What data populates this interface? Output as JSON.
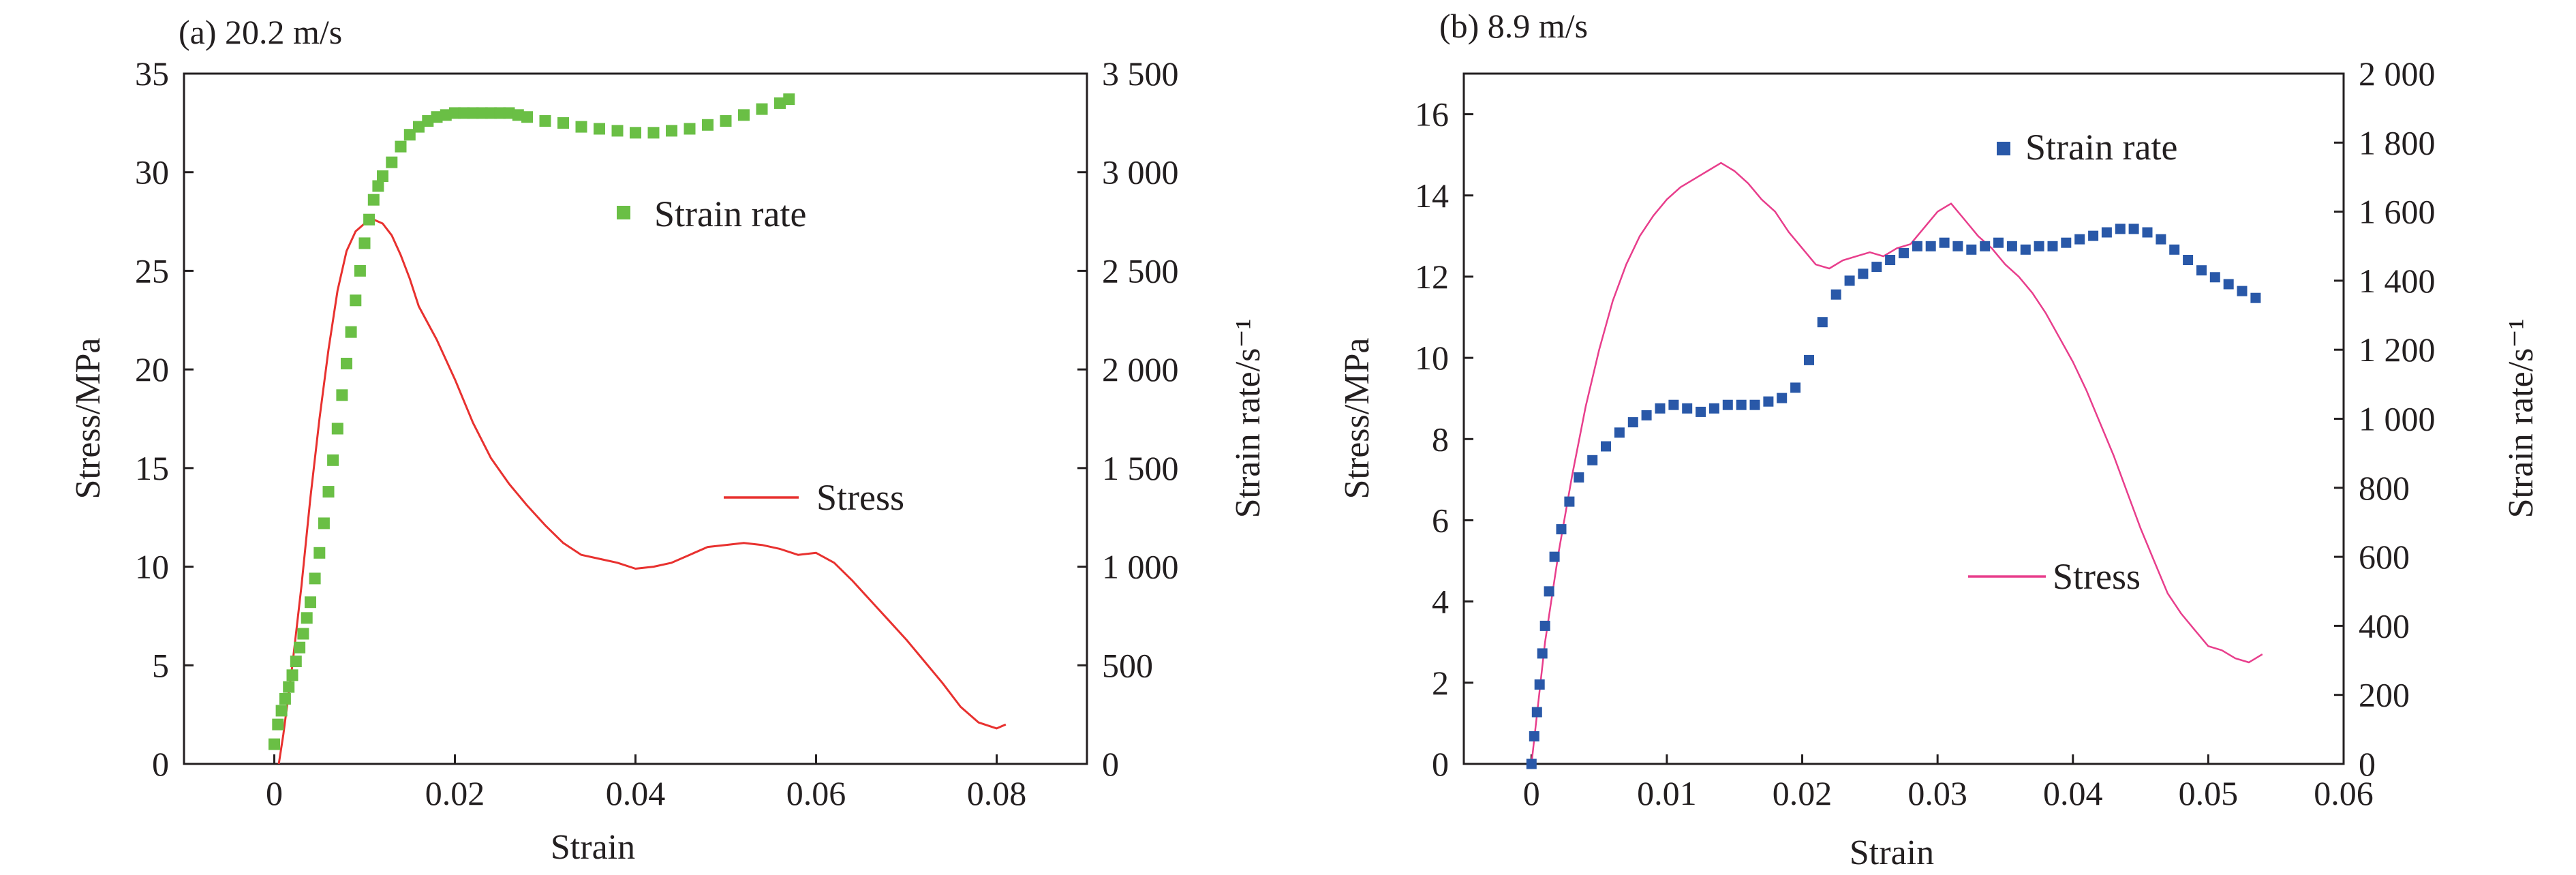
{
  "chart_data": [
    {
      "type": "line",
      "title": "(a) 20.2 m/s",
      "xlabel": "Strain",
      "ylabel": "Stress/MPa",
      "y2label": "Strain rate/s⁻¹",
      "xlim": [
        -0.01,
        0.09
      ],
      "ylim": [
        0,
        35
      ],
      "y2lim": [
        0,
        3500
      ],
      "xticks": [
        0,
        0.02,
        0.04,
        0.06,
        0.08
      ],
      "xtick_labels": [
        "0",
        "0.02",
        "0.04",
        "0.06",
        "0.08"
      ],
      "yticks": [
        0,
        5,
        10,
        15,
        20,
        25,
        30,
        35
      ],
      "ytick_labels": [
        "0",
        "5",
        "10",
        "15",
        "20",
        "25",
        "30",
        "35"
      ],
      "y2ticks": [
        0,
        500,
        1000,
        1500,
        2000,
        2500,
        3000,
        3500
      ],
      "y2tick_labels": [
        "0",
        "500",
        "1 000",
        "1 500",
        "2 000",
        "2 500",
        "3 000",
        "3 500"
      ],
      "grid": false,
      "series": [
        {
          "name": "Stress",
          "axis": "left",
          "style": "line",
          "color": "#e8312f",
          "x": [
            0.0005,
            0.001,
            0.002,
            0.003,
            0.004,
            0.005,
            0.006,
            0.007,
            0.008,
            0.009,
            0.01,
            0.011,
            0.012,
            0.013,
            0.014,
            0.015,
            0.016,
            0.018,
            0.02,
            0.022,
            0.024,
            0.026,
            0.028,
            0.03,
            0.032,
            0.034,
            0.036,
            0.038,
            0.04,
            0.042,
            0.044,
            0.046,
            0.048,
            0.05,
            0.052,
            0.054,
            0.056,
            0.058,
            0.06,
            0.062,
            0.064,
            0.066,
            0.068,
            0.07,
            0.072,
            0.074,
            0.076,
            0.078,
            0.08,
            0.081
          ],
          "y": [
            0,
            1.5,
            5,
            9,
            13.5,
            17.5,
            21,
            24,
            26,
            27,
            27.4,
            27.6,
            27.4,
            26.8,
            25.8,
            24.6,
            23.2,
            21.5,
            19.5,
            17.3,
            15.5,
            14.2,
            13.1,
            12.1,
            11.2,
            10.6,
            10.4,
            10.2,
            9.9,
            10.0,
            10.2,
            10.6,
            11.0,
            11.1,
            11.2,
            11.1,
            10.9,
            10.6,
            10.7,
            10.2,
            9.3,
            8.3,
            7.3,
            6.3,
            5.2,
            4.1,
            2.9,
            2.1,
            1.8,
            2.0
          ]
        },
        {
          "name": "Strain rate",
          "axis": "right",
          "style": "markers",
          "color": "#6abf45",
          "x": [
            0.0,
            0.0004,
            0.0008,
            0.0012,
            0.0016,
            0.002,
            0.0024,
            0.0028,
            0.0032,
            0.0036,
            0.004,
            0.0045,
            0.005,
            0.0055,
            0.006,
            0.0065,
            0.007,
            0.0075,
            0.008,
            0.0085,
            0.009,
            0.0095,
            0.01,
            0.0105,
            0.011,
            0.0115,
            0.012,
            0.013,
            0.014,
            0.015,
            0.016,
            0.017,
            0.018,
            0.019,
            0.02,
            0.021,
            0.022,
            0.023,
            0.024,
            0.025,
            0.026,
            0.027,
            0.028,
            0.03,
            0.032,
            0.034,
            0.036,
            0.038,
            0.04,
            0.042,
            0.044,
            0.046,
            0.048,
            0.05,
            0.052,
            0.054,
            0.056,
            0.057
          ],
          "y": [
            100,
            200,
            270,
            330,
            390,
            450,
            520,
            590,
            660,
            740,
            820,
            940,
            1070,
            1220,
            1380,
            1540,
            1700,
            1870,
            2030,
            2190,
            2350,
            2500,
            2640,
            2760,
            2860,
            2930,
            2980,
            3050,
            3130,
            3190,
            3230,
            3260,
            3280,
            3290,
            3300,
            3300,
            3300,
            3300,
            3300,
            3300,
            3300,
            3290,
            3280,
            3260,
            3250,
            3230,
            3220,
            3210,
            3200,
            3200,
            3210,
            3220,
            3240,
            3260,
            3290,
            3320,
            3350,
            3370
          ]
        }
      ],
      "legend": [
        {
          "label": "Strain rate",
          "series": "Strain rate",
          "placement": "upper-middle"
        },
        {
          "label": "Stress",
          "series": "Stress",
          "placement": "middle-right"
        }
      ]
    },
    {
      "type": "line",
      "title": "(b) 8.9 m/s",
      "xlabel": "Strain",
      "ylabel": "Stress/MPa",
      "y2label": "Strain rate/s⁻¹",
      "xlim": [
        -0.005,
        0.06
      ],
      "ylim": [
        0,
        17
      ],
      "y2lim": [
        0,
        2000
      ],
      "xticks": [
        0,
        0.01,
        0.02,
        0.03,
        0.04,
        0.05,
        0.06
      ],
      "xtick_labels": [
        "0",
        "0.01",
        "0.02",
        "0.03",
        "0.04",
        "0.05",
        "0.06"
      ],
      "yticks": [
        0,
        2,
        4,
        6,
        8,
        10,
        12,
        14,
        16
      ],
      "ytick_labels": [
        "0",
        "2",
        "4",
        "6",
        "8",
        "10",
        "12",
        "14",
        "16"
      ],
      "y2ticks": [
        0,
        200,
        400,
        600,
        800,
        1000,
        1200,
        1400,
        1600,
        1800,
        2000
      ],
      "y2tick_labels": [
        "0",
        "200",
        "400",
        "600",
        "800",
        "1 000",
        "1 200",
        "1 400",
        "1 600",
        "1 800",
        "2 000"
      ],
      "grid": false,
      "series": [
        {
          "name": "Stress",
          "axis": "left",
          "style": "line",
          "color": "#e83e8c",
          "x": [
            0.0,
            0.0005,
            0.001,
            0.002,
            0.003,
            0.004,
            0.005,
            0.006,
            0.007,
            0.008,
            0.009,
            0.01,
            0.011,
            0.012,
            0.013,
            0.014,
            0.015,
            0.016,
            0.017,
            0.018,
            0.019,
            0.02,
            0.021,
            0.022,
            0.023,
            0.024,
            0.025,
            0.026,
            0.027,
            0.028,
            0.029,
            0.03,
            0.031,
            0.032,
            0.033,
            0.034,
            0.035,
            0.036,
            0.037,
            0.038,
            0.039,
            0.04,
            0.041,
            0.042,
            0.043,
            0.044,
            0.045,
            0.046,
            0.047,
            0.048,
            0.049,
            0.05,
            0.051,
            0.052,
            0.053,
            0.054
          ],
          "y": [
            0,
            1.5,
            3.0,
            5.2,
            7.1,
            8.8,
            10.2,
            11.4,
            12.3,
            13.0,
            13.5,
            13.9,
            14.2,
            14.4,
            14.6,
            14.8,
            14.6,
            14.3,
            13.9,
            13.6,
            13.1,
            12.7,
            12.3,
            12.2,
            12.4,
            12.5,
            12.6,
            12.5,
            12.7,
            12.8,
            13.2,
            13.6,
            13.8,
            13.4,
            13.0,
            12.7,
            12.3,
            12.0,
            11.6,
            11.1,
            10.5,
            9.9,
            9.2,
            8.4,
            7.6,
            6.7,
            5.8,
            5.0,
            4.2,
            3.7,
            3.3,
            2.9,
            2.8,
            2.6,
            2.5,
            2.7
          ]
        },
        {
          "name": "Strain rate",
          "axis": "right",
          "style": "markers",
          "color": "#2958a8",
          "x": [
            0.0,
            0.0002,
            0.0004,
            0.0006,
            0.0008,
            0.001,
            0.0013,
            0.0017,
            0.0022,
            0.0028,
            0.0035,
            0.0045,
            0.0055,
            0.0065,
            0.0075,
            0.0085,
            0.0095,
            0.0105,
            0.0115,
            0.0125,
            0.0135,
            0.0145,
            0.0155,
            0.0165,
            0.0175,
            0.0185,
            0.0195,
            0.0205,
            0.0215,
            0.0225,
            0.0235,
            0.0245,
            0.0255,
            0.0265,
            0.0275,
            0.0285,
            0.0295,
            0.0305,
            0.0315,
            0.0325,
            0.0335,
            0.0345,
            0.0355,
            0.0365,
            0.0375,
            0.0385,
            0.0395,
            0.0405,
            0.0415,
            0.0425,
            0.0435,
            0.0445,
            0.0455,
            0.0465,
            0.0475,
            0.0485,
            0.0495,
            0.0505,
            0.0515,
            0.0525,
            0.0535
          ],
          "y": [
            0,
            80,
            150,
            230,
            320,
            400,
            500,
            600,
            680,
            760,
            830,
            880,
            920,
            960,
            990,
            1010,
            1030,
            1040,
            1030,
            1020,
            1030,
            1040,
            1040,
            1040,
            1050,
            1060,
            1090,
            1170,
            1280,
            1360,
            1400,
            1420,
            1440,
            1460,
            1480,
            1500,
            1500,
            1510,
            1500,
            1490,
            1500,
            1510,
            1500,
            1490,
            1500,
            1500,
            1510,
            1520,
            1530,
            1540,
            1550,
            1550,
            1540,
            1520,
            1490,
            1460,
            1430,
            1410,
            1390,
            1370,
            1350
          ]
        }
      ],
      "legend": [
        {
          "label": "Strain rate",
          "series": "Strain rate",
          "placement": "top-right"
        },
        {
          "label": "Stress",
          "series": "Stress",
          "placement": "middle-right"
        }
      ]
    }
  ]
}
